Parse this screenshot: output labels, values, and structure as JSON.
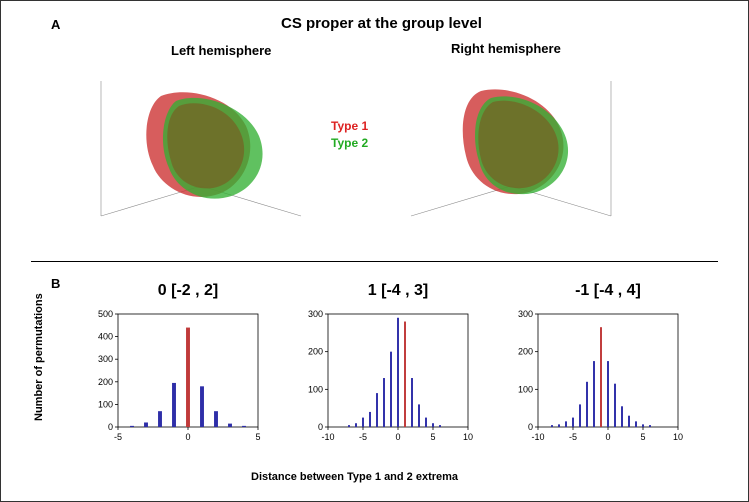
{
  "panelA": {
    "label": "A",
    "title": "CS proper at the group level",
    "left_subtitle": "Left hemisphere",
    "right_subtitle": "Right hemisphere",
    "legend": {
      "type1": {
        "label": "Type 1",
        "color": "#dd2222"
      },
      "type2": {
        "label": "Type 2",
        "color": "#22aa22"
      }
    },
    "axes_line_color": "#888888"
  },
  "panelB": {
    "label": "B",
    "ylabel": "Number of permutations",
    "xlabel": "Distance between Type 1 and 2 extrema",
    "bar_color": "#2e2ea8",
    "highlight_color": "#c03a3a",
    "bar_width": 0.28,
    "charts": [
      {
        "title": "0 [-2 , 2]",
        "xlim": [
          -5,
          5
        ],
        "xtick_step": 5,
        "ylim": [
          0,
          500
        ],
        "ytick_step": 100,
        "highlight_x": 0,
        "bars": [
          {
            "x": -4,
            "y": 5
          },
          {
            "x": -3,
            "y": 20
          },
          {
            "x": -2,
            "y": 70
          },
          {
            "x": -1,
            "y": 195
          },
          {
            "x": 0,
            "y": 440
          },
          {
            "x": 1,
            "y": 180
          },
          {
            "x": 2,
            "y": 70
          },
          {
            "x": 3,
            "y": 15
          },
          {
            "x": 4,
            "y": 5
          }
        ]
      },
      {
        "title": "1 [-4 , 3]",
        "xlim": [
          -10,
          10
        ],
        "xtick_step": 5,
        "ylim": [
          0,
          300
        ],
        "ytick_step": 100,
        "highlight_x": 1,
        "bars": [
          {
            "x": -7,
            "y": 5
          },
          {
            "x": -6,
            "y": 10
          },
          {
            "x": -5,
            "y": 25
          },
          {
            "x": -4,
            "y": 40
          },
          {
            "x": -3,
            "y": 90
          },
          {
            "x": -2,
            "y": 130
          },
          {
            "x": -1,
            "y": 200
          },
          {
            "x": 0,
            "y": 290
          },
          {
            "x": 1,
            "y": 280
          },
          {
            "x": 2,
            "y": 130
          },
          {
            "x": 3,
            "y": 60
          },
          {
            "x": 4,
            "y": 25
          },
          {
            "x": 5,
            "y": 10
          },
          {
            "x": 6,
            "y": 5
          }
        ]
      },
      {
        "title": "-1 [-4 , 4]",
        "xlim": [
          -10,
          10
        ],
        "xtick_step": 5,
        "ylim": [
          0,
          300
        ],
        "ytick_step": 100,
        "highlight_x": -1,
        "bars": [
          {
            "x": -8,
            "y": 5
          },
          {
            "x": -7,
            "y": 7
          },
          {
            "x": -6,
            "y": 15
          },
          {
            "x": -5,
            "y": 25
          },
          {
            "x": -4,
            "y": 60
          },
          {
            "x": -3,
            "y": 120
          },
          {
            "x": -2,
            "y": 175
          },
          {
            "x": -1,
            "y": 265
          },
          {
            "x": 0,
            "y": 175
          },
          {
            "x": 1,
            "y": 115
          },
          {
            "x": 2,
            "y": 55
          },
          {
            "x": 3,
            "y": 30
          },
          {
            "x": 4,
            "y": 15
          },
          {
            "x": 5,
            "y": 7
          },
          {
            "x": 6,
            "y": 5
          }
        ]
      }
    ]
  }
}
